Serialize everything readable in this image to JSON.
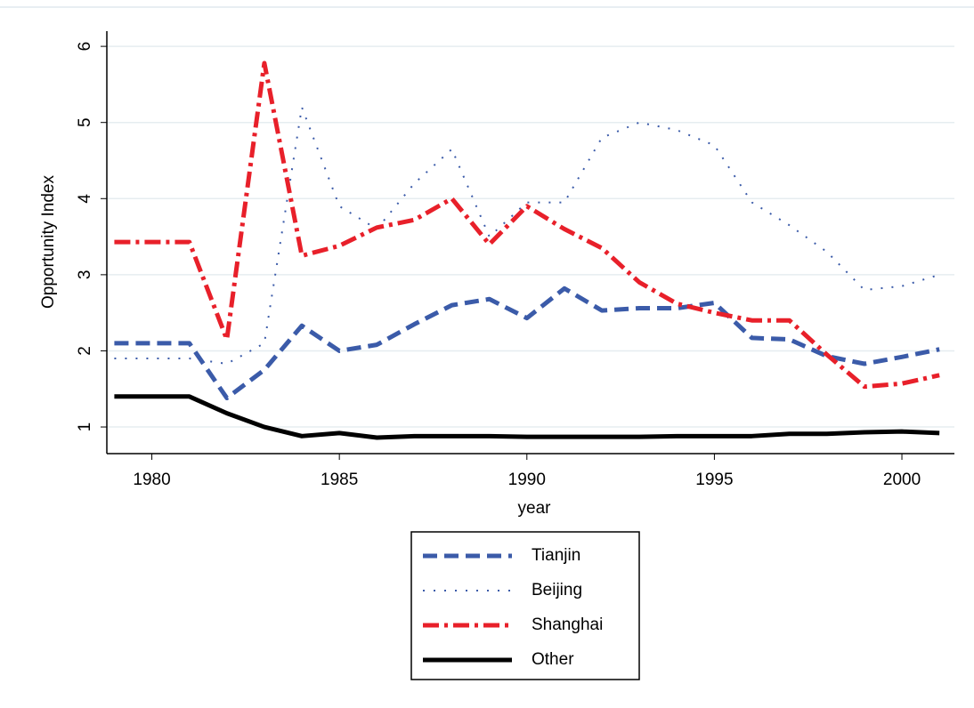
{
  "chart_data": {
    "type": "line",
    "x_label": "year",
    "y_label": "Opportunity Index",
    "x": [
      1979,
      1980,
      1981,
      1982,
      1983,
      1984,
      1985,
      1986,
      1987,
      1988,
      1989,
      1990,
      1991,
      1992,
      1993,
      1994,
      1995,
      1996,
      1997,
      1998,
      1999,
      2000,
      2001
    ],
    "series": [
      {
        "name": "Tianjin",
        "color": "#3b5ba9",
        "dash": "16 8",
        "width": 5,
        "values": [
          2.1,
          2.1,
          2.1,
          1.38,
          1.75,
          2.33,
          2.0,
          2.08,
          2.35,
          2.6,
          2.68,
          2.43,
          2.82,
          2.53,
          2.56,
          2.56,
          2.63,
          2.17,
          2.15,
          1.93,
          1.83,
          1.92,
          2.02
        ]
      },
      {
        "name": "Beijing",
        "color": "#3b5ba9",
        "dash": "2 10",
        "width": 2,
        "values": [
          1.9,
          1.9,
          1.9,
          1.83,
          2.1,
          5.2,
          3.9,
          3.6,
          4.2,
          4.65,
          3.5,
          3.95,
          3.95,
          4.8,
          5.0,
          4.9,
          4.7,
          3.95,
          3.65,
          3.3,
          2.8,
          2.85,
          3.0
        ]
      },
      {
        "name": "Shanghai",
        "color": "#e8202a",
        "dash": "18 6 4 6",
        "width": 5,
        "values": [
          3.43,
          3.43,
          3.43,
          2.15,
          5.78,
          3.25,
          3.38,
          3.62,
          3.72,
          4.0,
          3.4,
          3.9,
          3.6,
          3.35,
          2.9,
          2.62,
          2.5,
          2.4,
          2.4,
          1.95,
          1.53,
          1.57,
          1.68
        ]
      },
      {
        "name": "Other",
        "color": "#000000",
        "dash": "none",
        "width": 5,
        "values": [
          1.4,
          1.4,
          1.4,
          1.18,
          1.0,
          0.88,
          0.92,
          0.86,
          0.88,
          0.88,
          0.88,
          0.87,
          0.87,
          0.87,
          0.87,
          0.88,
          0.88,
          0.88,
          0.91,
          0.91,
          0.93,
          0.94,
          0.92
        ]
      }
    ],
    "xlim": [
      1978.8,
      2001.4
    ],
    "xticks": [
      1980,
      1985,
      1990,
      1995,
      2000
    ],
    "ylim": [
      0.65,
      6.2
    ],
    "yticks": [
      1,
      2,
      3,
      4,
      5,
      6
    ],
    "grid": true,
    "legend": "bottom"
  }
}
